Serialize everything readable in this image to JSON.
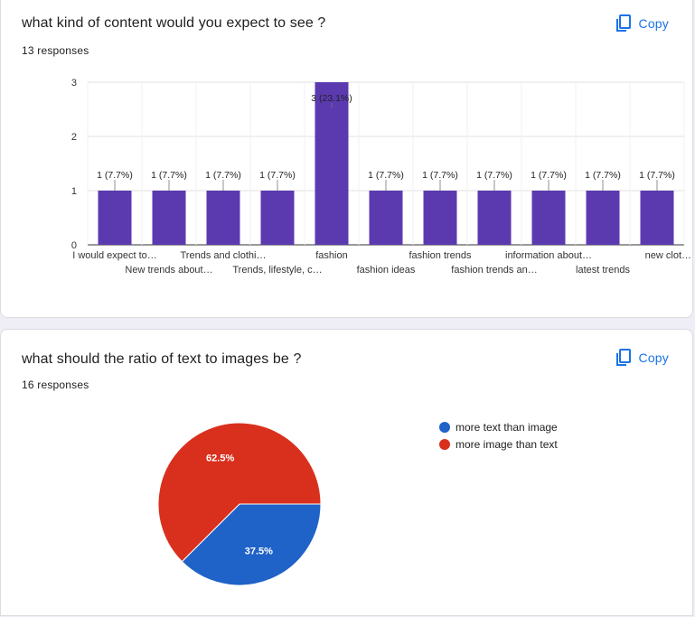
{
  "colors": {
    "bar": "#5b3ab0",
    "blue": "#1f62c8",
    "red": "#d9301e",
    "accent": "#1a73e8"
  },
  "questions": [
    {
      "title": "what kind of content would you expect to see ?",
      "responses": "13 responses",
      "copy_label": "Copy",
      "copy_icon": "copy-icon"
    },
    {
      "title": "what should the ratio of text to images be ?",
      "responses": "16 responses",
      "copy_label": "Copy",
      "copy_icon": "copy-icon"
    }
  ],
  "chart_data": [
    {
      "type": "bar",
      "categories": [
        "I would expect to…",
        "New trends about…",
        "Trends and clothi…",
        "Trends, lifestyle, c…",
        "fashion",
        "fashion ideas",
        "fashion trends",
        "fashion trends an…",
        "information about…",
        "latest trends",
        "new clot…"
      ],
      "values": [
        1,
        1,
        1,
        1,
        3,
        1,
        1,
        1,
        1,
        1,
        1
      ],
      "data_labels": [
        "1 (7.7%)",
        "1 (7.7%)",
        "1 (7.7%)",
        "1 (7.7%)",
        "3 (23.1%)",
        "1 (7.7%)",
        "1 (7.7%)",
        "1 (7.7%)",
        "1 (7.7%)",
        "1 (7.7%)",
        "1 (7.7%)"
      ],
      "yticks": [
        0,
        1,
        2,
        3
      ],
      "ylim": [
        0,
        3
      ],
      "title": "",
      "xlabel": "",
      "ylabel": ""
    },
    {
      "type": "pie",
      "labels": [
        "more text than image",
        "more image than text"
      ],
      "values": [
        37.5,
        62.5
      ],
      "data_labels": [
        "37.5%",
        "62.5%"
      ],
      "colors": [
        "#1f62c8",
        "#d9301e"
      ],
      "legend": "right"
    }
  ]
}
